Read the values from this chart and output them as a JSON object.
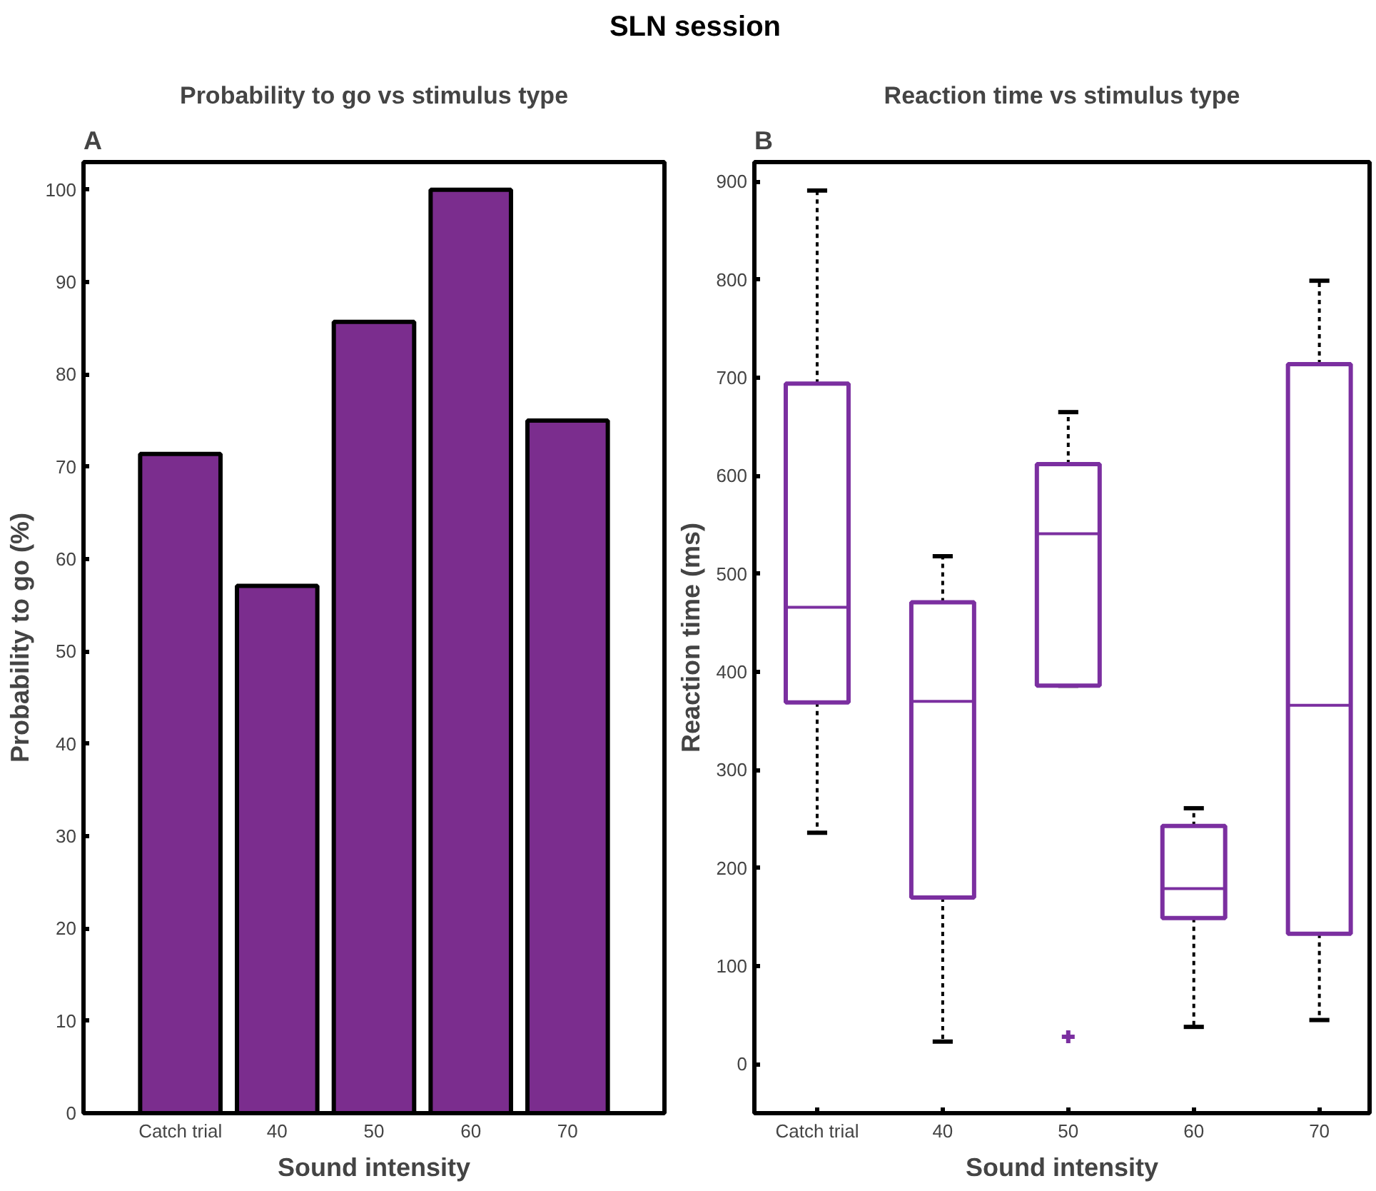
{
  "chart_data": [
    {
      "type": "bar",
      "title": "Probability to go vs stimulus type",
      "xlabel": "Sound intensity",
      "ylabel": "Probability to go (%)",
      "annotations": [
        "SLN session",
        "A"
      ],
      "categories": [
        "Catch trial",
        "40",
        "50",
        "60",
        "70"
      ],
      "values": [
        71.4,
        57.1,
        85.7,
        100,
        75
      ],
      "color": "#7b2d8e",
      "ylim": [
        0,
        103
      ],
      "yticks": [
        0,
        10,
        20,
        30,
        40,
        50,
        60,
        70,
        80,
        90,
        100
      ],
      "grid": false
    },
    {
      "type": "box",
      "title": "Reaction time vs stimulus type",
      "xlabel": "Sound intensity",
      "ylabel": "Reaction time (ms)",
      "annotations": [
        "B"
      ],
      "categories": [
        "Catch trial",
        "40",
        "50",
        "60",
        "70"
      ],
      "color": "#7b2fa0",
      "boxes": [
        {
          "low": 236,
          "q1": 369,
          "median": 466,
          "q3": 694,
          "high": 891
        },
        {
          "low": 23,
          "q1": 170,
          "median": 370,
          "q3": 471,
          "high": 518
        },
        {
          "low": 386,
          "q1": 386,
          "median": 541,
          "q3": 612,
          "high": 665,
          "outliers": [
            28
          ]
        },
        {
          "low": 38,
          "q1": 149,
          "median": 179,
          "q3": 243,
          "high": 261
        },
        {
          "low": 45,
          "q1": 133,
          "median": 366,
          "q3": 714,
          "high": 799
        }
      ],
      "ylim": [
        -50,
        920
      ],
      "yticks": [
        0,
        100,
        200,
        300,
        400,
        500,
        600,
        700,
        800,
        900
      ],
      "grid": false
    }
  ]
}
